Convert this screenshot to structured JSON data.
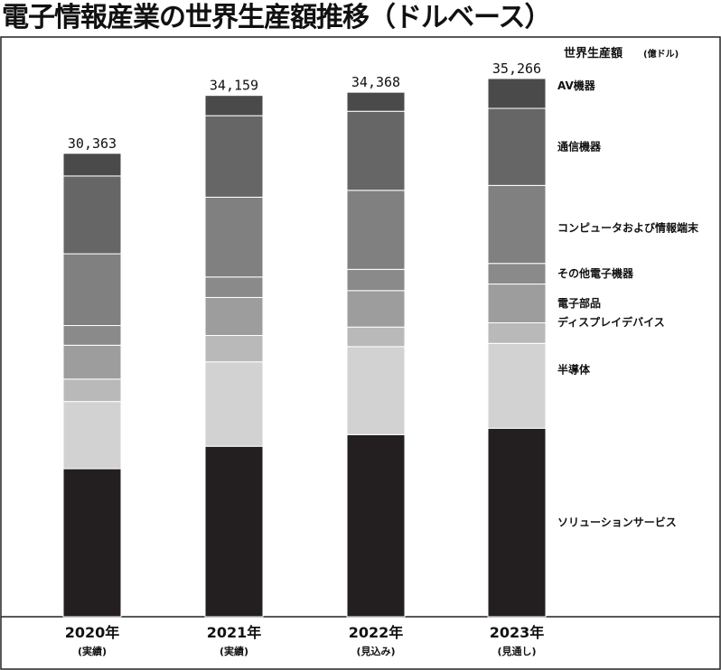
{
  "chart_data": {
    "type": "bar",
    "stacked": true,
    "title": "電子情報産業の世界生産額推移（ドルベース）",
    "unit_label": "世界生産額",
    "unit_sub": "(億ドル)",
    "categories": [
      "2020年",
      "2021年",
      "2022年",
      "2023年"
    ],
    "category_notes": [
      "(実績)",
      "(実績)",
      "(見込み)",
      "(見通し)"
    ],
    "totals": [
      30363,
      34159,
      34368,
      35266
    ],
    "total_labels": [
      "30,363",
      "34,159",
      "34,368",
      "35,266"
    ],
    "ylim": [
      0,
      35500
    ],
    "grid": false,
    "legend_position": "right",
    "series": [
      {
        "name": "ソリューションサービス",
        "color": "#231f20",
        "values": [
          9700,
          11170,
          11930,
          12350
        ]
      },
      {
        "name": "半導体",
        "color": "#d2d2d2",
        "values": [
          4400,
          5530,
          5770,
          5560
        ]
      },
      {
        "name": "ディスプレイデバイス",
        "color": "#b9b9b9",
        "values": [
          1470,
          1730,
          1280,
          1350
        ]
      },
      {
        "name": "電子部品",
        "color": "#9d9d9e",
        "values": [
          2220,
          2490,
          2390,
          2540
        ]
      },
      {
        "name": "その他電子機器",
        "color": "#8a8a8a",
        "values": [
          1290,
          1340,
          1390,
          1350
        ]
      },
      {
        "name": "コンピュータおよび情報端末",
        "color": "#808080",
        "values": [
          4700,
          5230,
          5180,
          5110
        ]
      },
      {
        "name": "通信機器",
        "color": "#666666",
        "values": [
          5100,
          5340,
          5180,
          5050
        ]
      },
      {
        "name": "AV機器",
        "color": "#4a4a4a",
        "values": [
          1483,
          1329,
          1248,
          1956
        ]
      }
    ]
  }
}
